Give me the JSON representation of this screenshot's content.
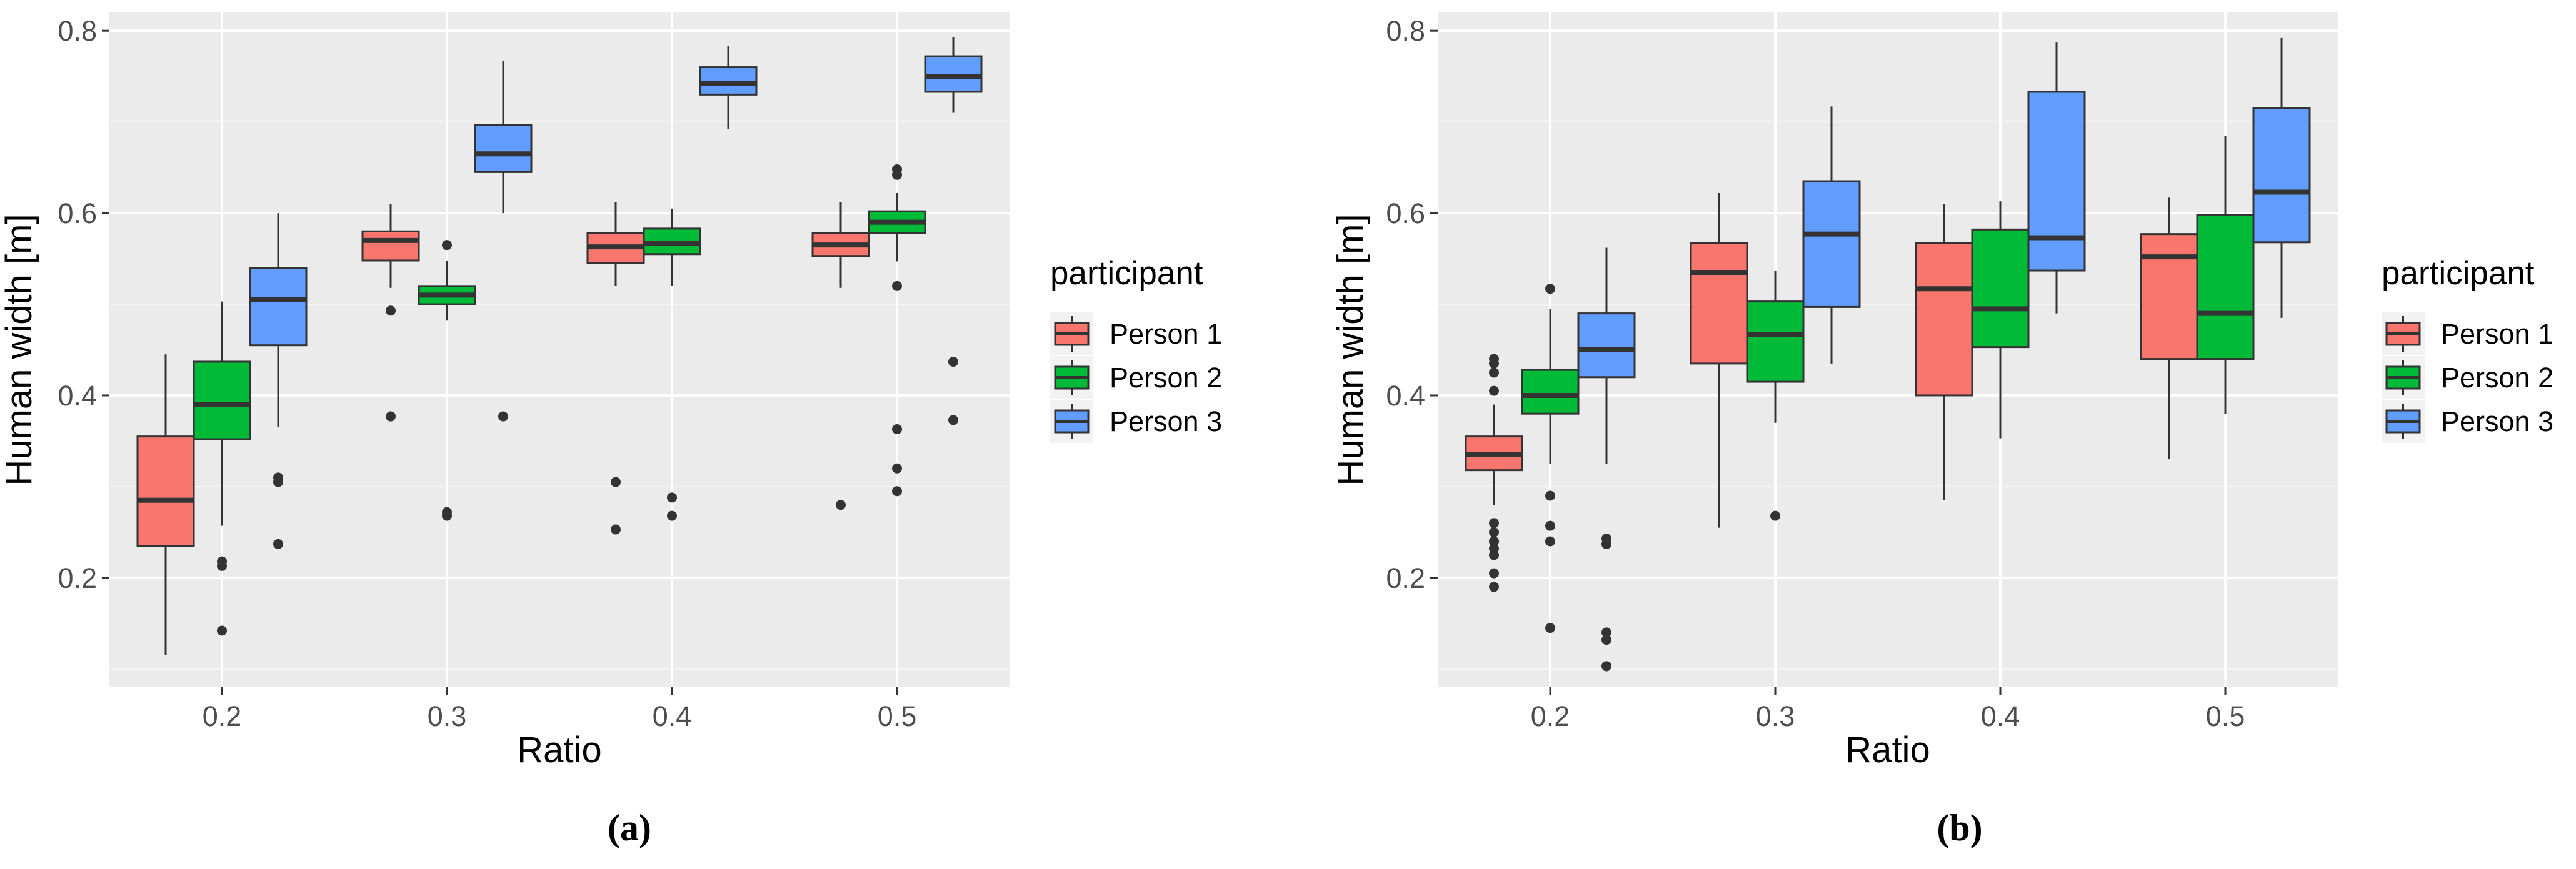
{
  "charts": [
    {
      "id": "a",
      "caption": "(a)",
      "xlabel": "Ratio",
      "ylabel": "Human width [m]",
      "legend_title": "participant",
      "legend_position": "right",
      "x_tick_labels": [
        "0.2",
        "0.3",
        "0.4",
        "0.5"
      ],
      "y_tick_labels": [
        "0.2",
        "0.4",
        "0.6",
        "0.8"
      ]
    },
    {
      "id": "b",
      "caption": "(b)",
      "xlabel": "Ratio",
      "ylabel": "Human width [m]",
      "legend_title": "participant",
      "legend_position": "right",
      "x_tick_labels": [
        "0.2",
        "0.3",
        "0.4",
        "0.5"
      ],
      "y_tick_labels": [
        "0.2",
        "0.4",
        "0.6",
        "0.8"
      ]
    }
  ],
  "chart_data": [
    {
      "type": "box",
      "title": "",
      "xlabel": "Ratio",
      "ylabel": "Human width [m]",
      "categories": [
        "0.2",
        "0.3",
        "0.4",
        "0.5"
      ],
      "ylim": [
        0.08,
        0.82
      ],
      "y_ticks": [
        0.2,
        0.4,
        0.6,
        0.8
      ],
      "grid": true,
      "legend_title": "participant",
      "legend_position": "right",
      "series": [
        {
          "name": "Person 1",
          "color": "#F8766D",
          "boxes": [
            {
              "q1": 0.235,
              "median": 0.285,
              "q3": 0.355,
              "whisker_low": 0.115,
              "whisker_high": 0.445,
              "outliers": []
            },
            {
              "q1": 0.548,
              "median": 0.57,
              "q3": 0.58,
              "whisker_low": 0.518,
              "whisker_high": 0.61,
              "outliers": [
                0.493,
                0.377
              ]
            },
            {
              "q1": 0.545,
              "median": 0.563,
              "q3": 0.578,
              "whisker_low": 0.52,
              "whisker_high": 0.612,
              "outliers": [
                0.305,
                0.253
              ]
            },
            {
              "q1": 0.553,
              "median": 0.565,
              "q3": 0.578,
              "whisker_low": 0.518,
              "whisker_high": 0.612,
              "outliers": [
                0.28
              ]
            }
          ]
        },
        {
          "name": "Person 2",
          "color": "#00BA38",
          "boxes": [
            {
              "q1": 0.352,
              "median": 0.39,
              "q3": 0.437,
              "whisker_low": 0.257,
              "whisker_high": 0.503,
              "outliers": [
                0.218,
                0.213,
                0.142
              ]
            },
            {
              "q1": 0.5,
              "median": 0.51,
              "q3": 0.52,
              "whisker_low": 0.482,
              "whisker_high": 0.548,
              "outliers": [
                0.565,
                0.272,
                0.268
              ]
            },
            {
              "q1": 0.555,
              "median": 0.567,
              "q3": 0.583,
              "whisker_low": 0.52,
              "whisker_high": 0.605,
              "outliers": [
                0.288,
                0.268
              ]
            },
            {
              "q1": 0.578,
              "median": 0.59,
              "q3": 0.602,
              "whisker_low": 0.547,
              "whisker_high": 0.622,
              "outliers": [
                0.648,
                0.642,
                0.52,
                0.363,
                0.32,
                0.295
              ]
            }
          ]
        },
        {
          "name": "Person 3",
          "color": "#619CFF",
          "boxes": [
            {
              "q1": 0.455,
              "median": 0.505,
              "q3": 0.54,
              "whisker_low": 0.365,
              "whisker_high": 0.6,
              "outliers": [
                0.31,
                0.305,
                0.237
              ]
            },
            {
              "q1": 0.645,
              "median": 0.665,
              "q3": 0.697,
              "whisker_low": 0.6,
              "whisker_high": 0.767,
              "outliers": [
                0.377
              ]
            },
            {
              "q1": 0.73,
              "median": 0.742,
              "q3": 0.76,
              "whisker_low": 0.692,
              "whisker_high": 0.783,
              "outliers": []
            },
            {
              "q1": 0.733,
              "median": 0.75,
              "q3": 0.772,
              "whisker_low": 0.71,
              "whisker_high": 0.793,
              "outliers": [
                0.437,
                0.373
              ]
            }
          ]
        }
      ]
    },
    {
      "type": "box",
      "title": "",
      "xlabel": "Ratio",
      "ylabel": "Human width [m]",
      "categories": [
        "0.2",
        "0.3",
        "0.4",
        "0.5"
      ],
      "ylim": [
        0.08,
        0.82
      ],
      "y_ticks": [
        0.2,
        0.4,
        0.6,
        0.8
      ],
      "grid": true,
      "legend_title": "participant",
      "legend_position": "right",
      "series": [
        {
          "name": "Person 1",
          "color": "#F8766D",
          "boxes": [
            {
              "q1": 0.318,
              "median": 0.335,
              "q3": 0.355,
              "whisker_low": 0.28,
              "whisker_high": 0.39,
              "outliers": [
                0.44,
                0.435,
                0.425,
                0.405,
                0.26,
                0.25,
                0.24,
                0.232,
                0.225,
                0.205,
                0.19
              ]
            },
            {
              "q1": 0.435,
              "median": 0.535,
              "q3": 0.567,
              "whisker_low": 0.255,
              "whisker_high": 0.622,
              "outliers": []
            },
            {
              "q1": 0.4,
              "median": 0.517,
              "q3": 0.567,
              "whisker_low": 0.285,
              "whisker_high": 0.61,
              "outliers": []
            },
            {
              "q1": 0.44,
              "median": 0.552,
              "q3": 0.577,
              "whisker_low": 0.33,
              "whisker_high": 0.617,
              "outliers": []
            }
          ]
        },
        {
          "name": "Person 2",
          "color": "#00BA38",
          "boxes": [
            {
              "q1": 0.38,
              "median": 0.4,
              "q3": 0.428,
              "whisker_low": 0.325,
              "whisker_high": 0.495,
              "outliers": [
                0.517,
                0.29,
                0.257,
                0.24,
                0.145
              ]
            },
            {
              "q1": 0.415,
              "median": 0.467,
              "q3": 0.503,
              "whisker_low": 0.37,
              "whisker_high": 0.537,
              "outliers": [
                0.268
              ]
            },
            {
              "q1": 0.453,
              "median": 0.495,
              "q3": 0.582,
              "whisker_low": 0.353,
              "whisker_high": 0.613,
              "outliers": []
            },
            {
              "q1": 0.44,
              "median": 0.49,
              "q3": 0.598,
              "whisker_low": 0.38,
              "whisker_high": 0.685,
              "outliers": []
            }
          ]
        },
        {
          "name": "Person 3",
          "color": "#619CFF",
          "boxes": [
            {
              "q1": 0.42,
              "median": 0.45,
              "q3": 0.49,
              "whisker_low": 0.325,
              "whisker_high": 0.562,
              "outliers": [
                0.243,
                0.237,
                0.14,
                0.132,
                0.103
              ]
            },
            {
              "q1": 0.497,
              "median": 0.577,
              "q3": 0.635,
              "whisker_low": 0.435,
              "whisker_high": 0.717,
              "outliers": []
            },
            {
              "q1": 0.537,
              "median": 0.573,
              "q3": 0.733,
              "whisker_low": 0.49,
              "whisker_high": 0.787,
              "outliers": []
            },
            {
              "q1": 0.568,
              "median": 0.623,
              "q3": 0.715,
              "whisker_low": 0.485,
              "whisker_high": 0.792,
              "outliers": []
            }
          ]
        }
      ]
    }
  ]
}
